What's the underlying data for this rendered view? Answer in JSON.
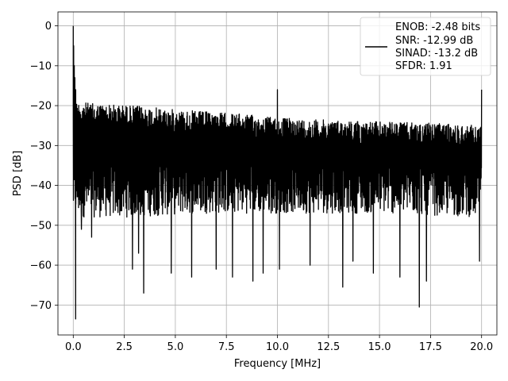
{
  "chart_data": {
    "type": "line",
    "xlabel": "Frequency [MHz]",
    "ylabel": "PSD [dB]",
    "xlim": [
      -0.75,
      20.75
    ],
    "ylim": [
      -77.5,
      3.5
    ],
    "xticks": [
      0.0,
      2.5,
      5.0,
      7.5,
      10.0,
      12.5,
      15.0,
      17.5,
      20.0
    ],
    "xtick_labels": [
      "0.0",
      "2.5",
      "5.0",
      "7.5",
      "10.0",
      "12.5",
      "15.0",
      "17.5",
      "20.0"
    ],
    "yticks": [
      0,
      -10,
      -20,
      -30,
      -40,
      -50,
      -60,
      -70
    ],
    "ytick_labels": [
      "0",
      "−10",
      "−20",
      "−30",
      "−40",
      "−50",
      "−60",
      "−70"
    ],
    "grid": true,
    "legend": {
      "placement": "upper right",
      "entries": [
        "ENOB: -2.48 bits",
        "SNR: -12.99 dB",
        "SINAD: -13.2 dB",
        "SFDR: 1.91"
      ]
    },
    "series": [
      {
        "color": "#000000",
        "upper_envelope_db": [
          [
            0.3,
            -19
          ],
          [
            1.0,
            -19.5
          ],
          [
            3.0,
            -20
          ],
          [
            5.0,
            -21
          ],
          [
            8.0,
            -22
          ],
          [
            10.0,
            -23
          ],
          [
            12.0,
            -23.5
          ],
          [
            15.0,
            -24
          ],
          [
            18.0,
            -24.5
          ],
          [
            20.0,
            -25
          ]
        ],
        "lower_envelope_db": [
          [
            0.3,
            -48
          ],
          [
            3.0,
            -48
          ],
          [
            6.0,
            -47
          ],
          [
            10.0,
            -47
          ],
          [
            15.0,
            -47
          ],
          [
            20.0,
            -48
          ]
        ],
        "dips": [
          [
            0.12,
            -73.5
          ],
          [
            0.4,
            -51
          ],
          [
            0.9,
            -53
          ],
          [
            2.9,
            -61
          ],
          [
            3.45,
            -67
          ],
          [
            3.2,
            -57
          ],
          [
            4.8,
            -62
          ],
          [
            5.8,
            -63
          ],
          [
            7.0,
            -61
          ],
          [
            7.8,
            -63
          ],
          [
            8.8,
            -64
          ],
          [
            9.3,
            -62
          ],
          [
            10.1,
            -61
          ],
          [
            11.6,
            -60
          ],
          [
            13.2,
            -65.5
          ],
          [
            13.7,
            -59
          ],
          [
            14.7,
            -62
          ],
          [
            16.0,
            -63
          ],
          [
            16.95,
            -70.5
          ],
          [
            17.3,
            -64
          ],
          [
            19.9,
            -59
          ]
        ],
        "spikes": [
          [
            0.0,
            0
          ],
          [
            0.02,
            -5
          ],
          [
            0.05,
            -10
          ],
          [
            0.08,
            -13
          ],
          [
            0.12,
            -16
          ],
          [
            10.0,
            -16
          ],
          [
            20.0,
            -16
          ]
        ]
      }
    ]
  }
}
